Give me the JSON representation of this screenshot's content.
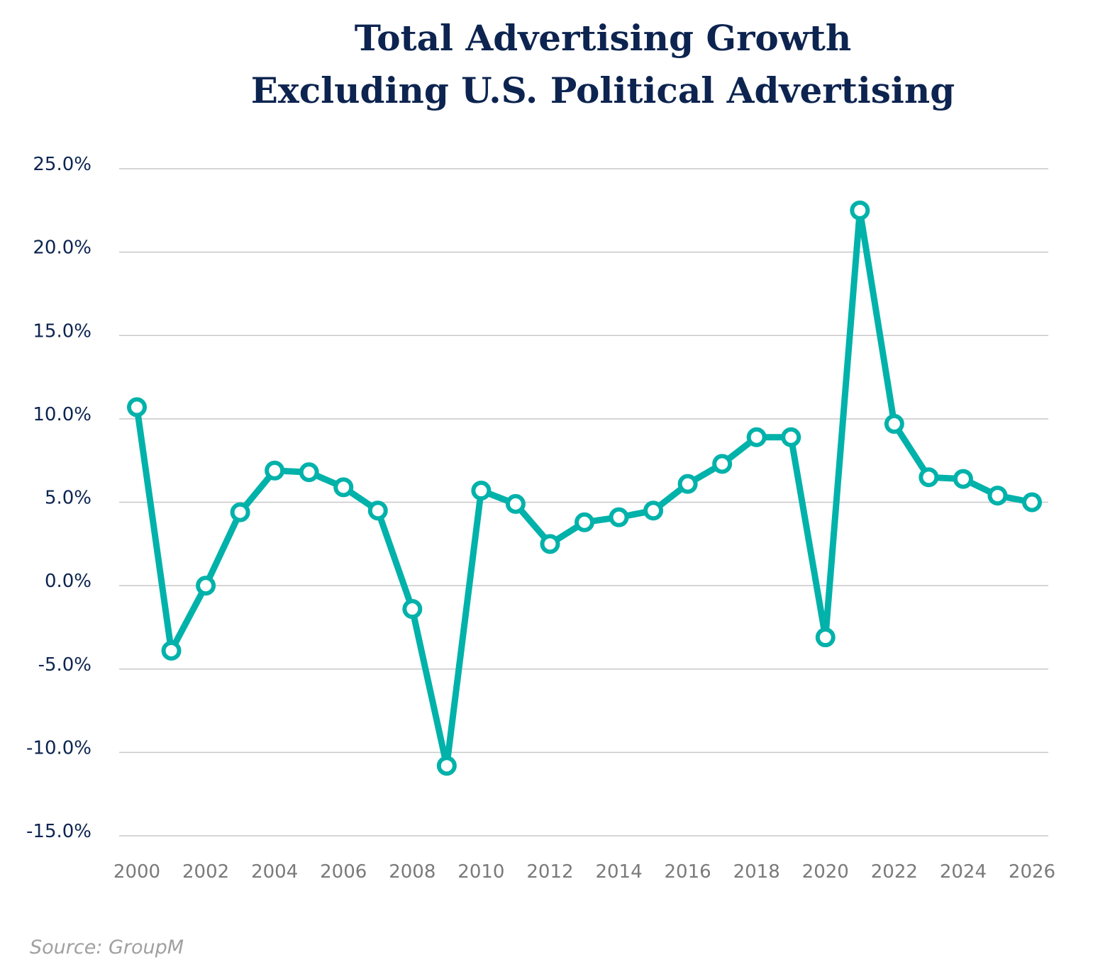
{
  "chart_data": {
    "type": "line",
    "title_line1": "Total Advertising Growth",
    "title_line2": "Excluding U.S. Political Advertising",
    "x": [
      2000,
      2001,
      2002,
      2003,
      2004,
      2005,
      2006,
      2007,
      2008,
      2009,
      2010,
      2011,
      2012,
      2013,
      2014,
      2015,
      2016,
      2017,
      2018,
      2019,
      2020,
      2021,
      2022,
      2023,
      2024,
      2025,
      2026
    ],
    "series": [
      {
        "values": [
          10.7,
          -3.9,
          0.0,
          4.4,
          6.9,
          6.8,
          5.9,
          4.5,
          -1.4,
          -10.8,
          5.7,
          4.9,
          2.5,
          3.8,
          4.1,
          4.5,
          6.1,
          7.3,
          8.9,
          8.9,
          -3.1,
          22.5,
          9.7,
          6.5,
          6.4,
          5.4,
          5.0
        ]
      }
    ],
    "ylim": [
      -15,
      25
    ],
    "y_ticks": [
      25,
      20,
      15,
      10,
      5,
      0,
      -5,
      -10,
      -15
    ],
    "y_tick_labels": [
      "25.0%",
      "20.0%",
      "15.0%",
      "10.0%",
      "5.0%",
      "0.0%",
      "-5.0%",
      "-10.0%",
      "-15.0%"
    ],
    "xlim": [
      2000,
      2026
    ],
    "x_ticks": [
      2000,
      2002,
      2004,
      2006,
      2008,
      2010,
      2012,
      2014,
      2016,
      2018,
      2020,
      2022,
      2024,
      2026
    ],
    "x_tick_labels": [
      "2000",
      "2002",
      "2004",
      "2006",
      "2008",
      "2010",
      "2012",
      "2014",
      "2016",
      "2018",
      "2020",
      "2022",
      "2024",
      "2026"
    ],
    "grid": "horizontal",
    "legend": "none"
  },
  "source": "Source: GroupM",
  "colors": {
    "title": "#0d2450",
    "line": "#00b2aa",
    "y_labels": "#0d2450",
    "x_labels": "#7a7a7a",
    "grid": "#c8c8c8",
    "source": "#a0a0a0"
  }
}
